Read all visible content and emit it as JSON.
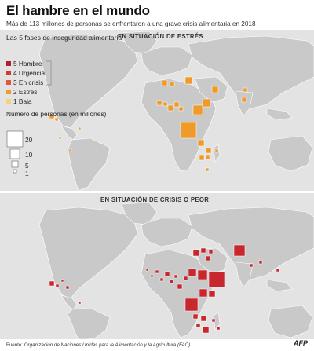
{
  "header": {
    "title": "El hambre en el mundo",
    "subtitle": "Más de 113 millones de personas se enfrentaron a una grave crisis alimentaria en 2018"
  },
  "panels": {
    "top_label": "EN SITUACIÓN DE ESTRÉS",
    "bottom_label": "EN SITUACIÓN DE CRISIS O PEOR"
  },
  "legend": {
    "phases_title": "Las 5 fases de inseguridad alimentaria",
    "phases": [
      {
        "label": "5 Hambre",
        "color": "#b01f2e"
      },
      {
        "label": "4 Urgencia",
        "color": "#d53a2f"
      },
      {
        "label": "3 En crisis",
        "color": "#e05a3a"
      },
      {
        "label": "2 Estrés",
        "color": "#ef9a29"
      },
      {
        "label": "1 Baja",
        "color": "#f6d37a"
      }
    ],
    "size_title": "Número de personas (en millones)",
    "sizes": [
      "20",
      "10",
      "5",
      "1"
    ]
  },
  "colors": {
    "land": "#c9c9c9",
    "ocean": "#e3e3e3",
    "stress": "#ef9a29",
    "crisis": "#c8282d"
  },
  "footer": {
    "source_lead": "Fuente:",
    "source": "Organización de Naciones Unidas para la Alimentación y la Agricultura (FAO)",
    "logo": "AFP"
  }
}
